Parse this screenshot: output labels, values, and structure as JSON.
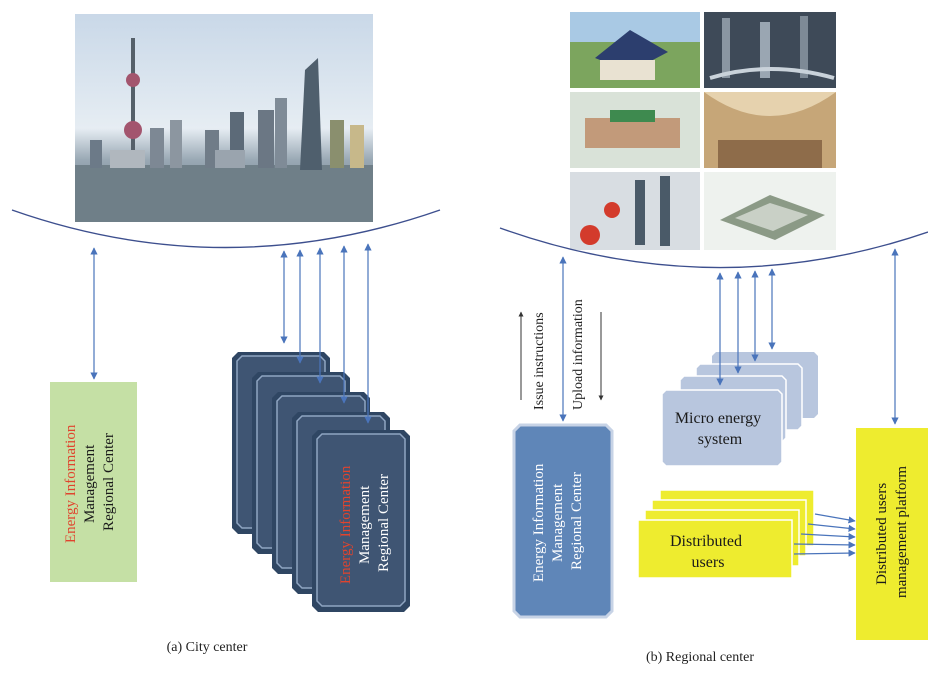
{
  "panel_a": {
    "caption": "(a) City center",
    "single_box": {
      "line1": "Energy Information",
      "line2": "Management",
      "line3": "Regional Center"
    },
    "stack_front": {
      "line1": "Energy Information",
      "line2": "Management",
      "line3": "Regional Center"
    }
  },
  "panel_b": {
    "caption": "(b) Regional center",
    "issue_label": "Issue instructions",
    "upload_label": "Upload information",
    "center_box": {
      "line1": "Energy Information",
      "line2": "Management",
      "line3": "Regional Center"
    },
    "micro_box": {
      "line1": "Micro energy",
      "line2": "system"
    },
    "users_box": {
      "line1": "Distributed",
      "line2": "users"
    },
    "platform_box": {
      "line1": "Distributed users",
      "line2": "management platform"
    }
  },
  "colors": {
    "accent_red": "#e0442e",
    "arrow_blue": "#4a74bb",
    "dark_box": "#3f5573",
    "green_box": "#c5e0a5",
    "blue_box": "#5f86b8",
    "light_blue_box": "#b8c6de",
    "yellow_box": "#eeec2f"
  }
}
